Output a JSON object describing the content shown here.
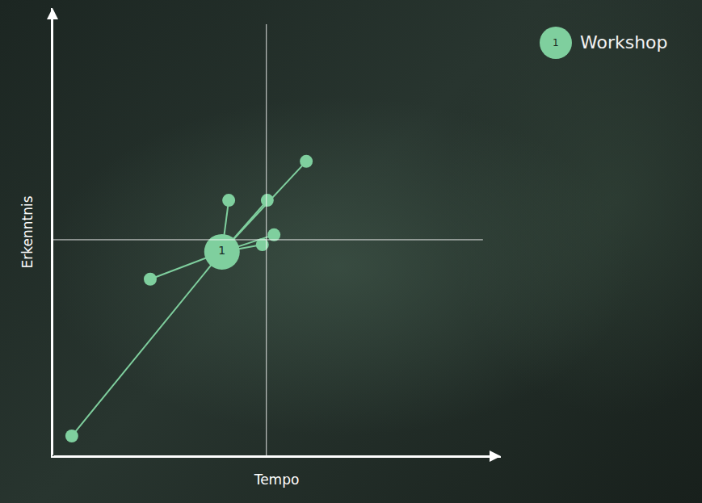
{
  "chart_data": {
    "type": "scatter",
    "x_label": "Tempo",
    "y_label": "Erkenntnis",
    "xlim": [
      0,
      10
    ],
    "ylim": [
      0,
      10
    ],
    "tick_labels": false,
    "grid": false,
    "legend": "top right",
    "vline": {
      "x": 4.77,
      "y_end": 9.64
    },
    "hline": {
      "y": 4.83,
      "x_end": 9.6
    },
    "series": [
      {
        "name": "Workshop",
        "label": "1",
        "color": "#7fcf9e",
        "center": {
          "x": 3.78,
          "y": 4.56
        },
        "x": [
          0.43,
          2.18,
          3.93,
          4.79,
          5.66,
          4.68,
          4.94
        ],
        "y": [
          0.45,
          3.95,
          5.71,
          5.71,
          6.58,
          4.72,
          4.94
        ]
      }
    ]
  }
}
